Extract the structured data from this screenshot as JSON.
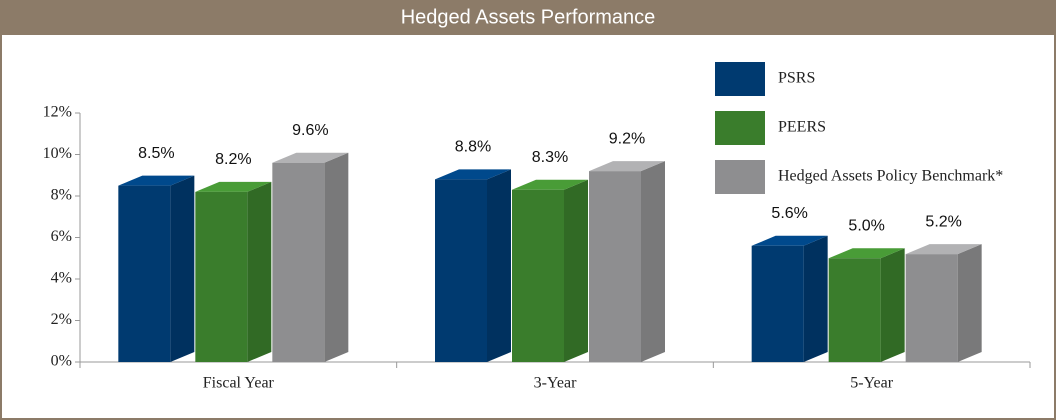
{
  "chart_data": {
    "type": "bar",
    "title": "Hedged Assets Performance",
    "categories": [
      "Fiscal Year",
      "3-Year",
      "5-Year"
    ],
    "series": [
      {
        "name": "PSRS",
        "color": "#003a70",
        "values": [
          8.5,
          8.8,
          5.6
        ],
        "value_labels": [
          "8.5%",
          "8.8%",
          "5.6%"
        ]
      },
      {
        "name": "PEERS",
        "color": "#3a7d2c",
        "values": [
          8.2,
          8.3,
          5.0
        ],
        "value_labels": [
          "8.2%",
          "8.3%",
          "5.0%"
        ]
      },
      {
        "name": "Hedged Assets Policy Benchmark*",
        "color": "#8e8e90",
        "values": [
          9.6,
          9.2,
          5.2
        ],
        "value_labels": [
          "9.6%",
          "9.2%",
          "5.2%"
        ]
      }
    ],
    "ylim": [
      0,
      12
    ],
    "yticks": [
      {
        "value": 0,
        "label": "0%"
      },
      {
        "value": 2,
        "label": "2%"
      },
      {
        "value": 4,
        "label": "4%"
      },
      {
        "value": 6,
        "label": "6%"
      },
      {
        "value": 8,
        "label": "8%"
      },
      {
        "value": 10,
        "label": "10%"
      },
      {
        "value": 12,
        "label": "12%"
      }
    ],
    "legend": "top-right"
  }
}
